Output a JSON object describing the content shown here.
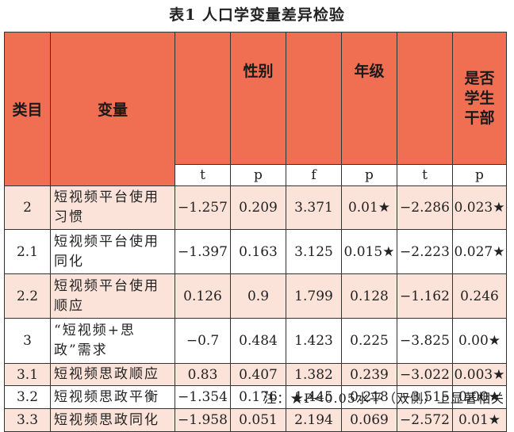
{
  "title": "表1 人口学变量差异检验",
  "headers": {
    "category": "类目",
    "variable": "变量",
    "gender": "性别",
    "grade": "年级",
    "cadre_lines": [
      "是否",
      "学生",
      "干部"
    ]
  },
  "subheaders": [
    "t",
    "p",
    "f",
    "p",
    "t",
    "p"
  ],
  "rows": [
    {
      "id": "2",
      "name": "短视频平台使用习惯",
      "values": [
        "−1.257",
        "0.209",
        "3.371",
        "0.01★",
        "−2.286",
        "0.023★"
      ]
    },
    {
      "id": "2.1",
      "name": "短视频平台使用同化",
      "values": [
        "−1.397",
        "0.163",
        "3.125",
        "0.015★",
        "−2.223",
        "0.027★"
      ]
    },
    {
      "id": "2.2",
      "name": "短视频平台使用顺应",
      "values": [
        "0.126",
        "0.9",
        "1.799",
        "0.128",
        "−1.162",
        "0.246"
      ]
    },
    {
      "id": "3",
      "name": "“短视频+思政”需求",
      "values": [
        "−0.7",
        "0.484",
        "1.423",
        "0.225",
        "−3.825",
        "0.00★"
      ]
    },
    {
      "id": "3.1",
      "name": "短视频思政顺应",
      "values": [
        "0.83",
        "0.407",
        "1.382",
        "0.239",
        "−3.022",
        "0.003★"
      ]
    },
    {
      "id": "3.2",
      "name": "短视频思政平衡",
      "values": [
        "−1.354",
        "0.176",
        "1.445",
        "0.218",
        "−3.515",
        "0.00★"
      ]
    },
    {
      "id": "3.3",
      "name": "短视频思政同化",
      "values": [
        "−1.958",
        "0.051",
        "2.194",
        "0.069",
        "−2.572",
        "0.01★"
      ]
    }
  ],
  "note": "注：★P<0.05水平（双侧）上显著相关",
  "colors": {
    "header": "#f06e52",
    "pink_row": "#fbe3d9"
  }
}
